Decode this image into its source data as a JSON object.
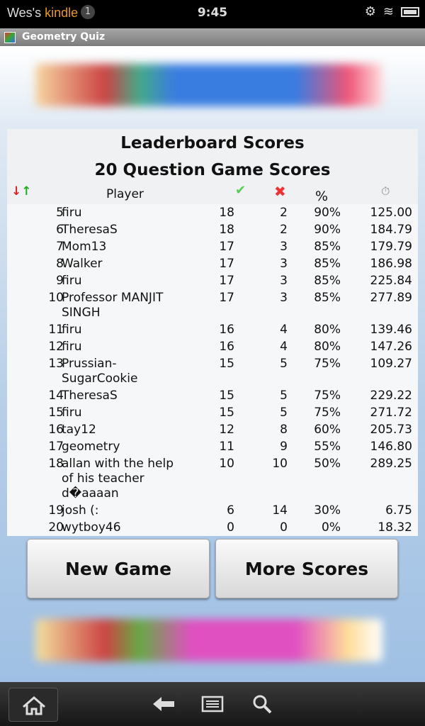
{
  "status": {
    "device_owner": "Wes's",
    "device_name": "kindle",
    "notifications": "1",
    "time": "9:45"
  },
  "app": {
    "title": "Geometry Quiz"
  },
  "leaderboard": {
    "title": "Leaderboard Scores",
    "subtitle": "20 Question Game Scores",
    "columns": {
      "player": "Player",
      "percent": "%"
    },
    "rows": [
      {
        "rank": "5",
        "player": "firu",
        "correct": "18",
        "wrong": "2",
        "percent": "90%",
        "time": "125.00"
      },
      {
        "rank": "6",
        "player": "TheresaS",
        "correct": "18",
        "wrong": "2",
        "percent": "90%",
        "time": "184.79"
      },
      {
        "rank": "7",
        "player": "Mom13",
        "correct": "17",
        "wrong": "3",
        "percent": "85%",
        "time": "179.79"
      },
      {
        "rank": "8",
        "player": "Walker",
        "correct": "17",
        "wrong": "3",
        "percent": "85%",
        "time": "186.98"
      },
      {
        "rank": "9",
        "player": "firu",
        "correct": "17",
        "wrong": "3",
        "percent": "85%",
        "time": "225.84"
      },
      {
        "rank": "10",
        "player": "Professor MANJIT SINGH",
        "correct": "17",
        "wrong": "3",
        "percent": "85%",
        "time": "277.89"
      },
      {
        "rank": "11",
        "player": "firu",
        "correct": "16",
        "wrong": "4",
        "percent": "80%",
        "time": "139.46"
      },
      {
        "rank": "12",
        "player": "firu",
        "correct": "16",
        "wrong": "4",
        "percent": "80%",
        "time": "147.26"
      },
      {
        "rank": "13",
        "player": "Prussian-SugarCookie",
        "correct": "15",
        "wrong": "5",
        "percent": "75%",
        "time": "109.27"
      },
      {
        "rank": "14",
        "player": "TheresaS",
        "correct": "15",
        "wrong": "5",
        "percent": "75%",
        "time": "229.22"
      },
      {
        "rank": "15",
        "player": "firu",
        "correct": "15",
        "wrong": "5",
        "percent": "75%",
        "time": "271.72"
      },
      {
        "rank": "16",
        "player": "tay12",
        "correct": "12",
        "wrong": "8",
        "percent": "60%",
        "time": "205.73"
      },
      {
        "rank": "17",
        "player": "geometry",
        "correct": "11",
        "wrong": "9",
        "percent": "55%",
        "time": "146.80"
      },
      {
        "rank": "18",
        "player": "allan with the help of his teacher d�aaaan",
        "correct": "10",
        "wrong": "10",
        "percent": "50%",
        "time": "289.25"
      },
      {
        "rank": "19",
        "player": "josh (:",
        "correct": "6",
        "wrong": "14",
        "percent": "30%",
        "time": "6.75"
      },
      {
        "rank": "20",
        "player": "wytboy46",
        "correct": "0",
        "wrong": "0",
        "percent": "0%",
        "time": "18.32"
      }
    ]
  },
  "buttons": {
    "new_game": "New Game",
    "more_scores": "More Scores"
  }
}
